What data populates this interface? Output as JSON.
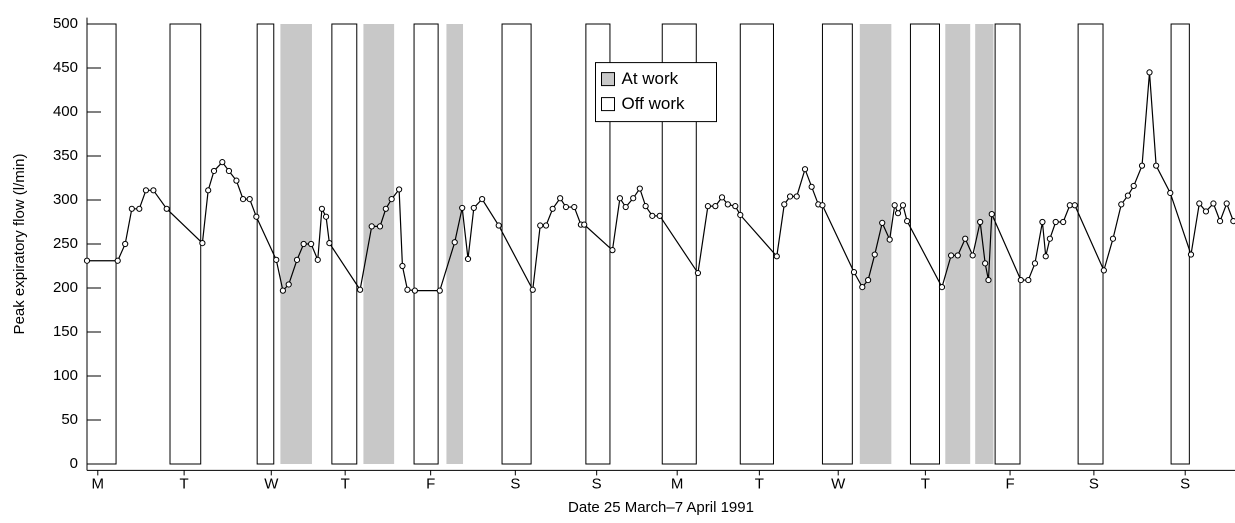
{
  "chart_data": {
    "type": "line",
    "ylabel": "Peak expiratory flow (l/min)",
    "xlabel": "Date 25 March–7 April 1991",
    "xlim": [
      0,
      13.83
    ],
    "ylim": [
      -5,
      505
    ],
    "yticks": [
      0,
      50,
      100,
      150,
      200,
      250,
      300,
      350,
      400,
      450,
      500
    ],
    "xticks": [
      {
        "value": 0.13,
        "label": "M"
      },
      {
        "value": 1.17,
        "label": "T"
      },
      {
        "value": 2.22,
        "label": "W"
      },
      {
        "value": 3.11,
        "label": "T"
      },
      {
        "value": 4.14,
        "label": "F"
      },
      {
        "value": 5.16,
        "label": "S"
      },
      {
        "value": 6.14,
        "label": "S"
      },
      {
        "value": 7.11,
        "label": "M"
      },
      {
        "value": 8.1,
        "label": "T"
      },
      {
        "value": 9.05,
        "label": "W"
      },
      {
        "value": 10.1,
        "label": "T"
      },
      {
        "value": 11.12,
        "label": "F"
      },
      {
        "value": 12.13,
        "label": "S"
      },
      {
        "value": 13.23,
        "label": "S"
      }
    ],
    "legend": "top-center",
    "color": "#000000",
    "shaded_periods": [
      {
        "name": "At work",
        "color": "#c8c8c8",
        "spans": [
          [
            2.33,
            2.71
          ],
          [
            3.33,
            3.7
          ],
          [
            4.33,
            4.53
          ],
          [
            9.31,
            9.69
          ],
          [
            10.34,
            10.64
          ],
          [
            10.7,
            10.92
          ]
        ]
      },
      {
        "name": "Off work",
        "color": "#ffffff",
        "spans": [
          [
            0,
            0.35
          ],
          [
            1.0,
            1.37
          ],
          [
            2.05,
            2.25
          ],
          [
            2.95,
            3.25
          ],
          [
            3.94,
            4.23
          ],
          [
            5.0,
            5.35
          ],
          [
            6.01,
            6.3
          ],
          [
            6.93,
            7.34
          ],
          [
            7.87,
            8.27
          ],
          [
            8.86,
            9.22
          ],
          [
            9.92,
            10.27
          ],
          [
            10.94,
            11.24
          ],
          [
            11.94,
            12.24
          ],
          [
            13.06,
            13.28
          ]
        ]
      }
    ],
    "x": [
      0,
      0.37,
      0.46,
      0.54,
      0.63,
      0.71,
      0.8,
      0.96,
      1.39,
      1.46,
      1.53,
      1.63,
      1.71,
      1.8,
      1.88,
      1.96,
      2.04,
      2.28,
      2.36,
      2.43,
      2.53,
      2.61,
      2.7,
      2.78,
      2.83,
      2.88,
      2.92,
      3.29,
      3.43,
      3.53,
      3.6,
      3.67,
      3.76,
      3.8,
      3.86,
      3.95,
      4.25,
      4.43,
      4.52,
      4.59,
      4.66,
      4.76,
      4.96,
      5.37,
      5.46,
      5.53,
      5.61,
      5.7,
      5.77,
      5.87,
      5.95,
      5.99,
      6.33,
      6.42,
      6.49,
      6.58,
      6.66,
      6.73,
      6.81,
      6.9,
      7.36,
      7.48,
      7.57,
      7.65,
      7.72,
      7.81,
      7.87,
      8.31,
      8.4,
      8.47,
      8.55,
      8.65,
      8.73,
      8.81,
      8.86,
      9.24,
      9.34,
      9.41,
      9.49,
      9.58,
      9.67,
      9.73,
      9.77,
      9.83,
      9.88,
      10.3,
      10.41,
      10.49,
      10.58,
      10.67,
      10.76,
      10.82,
      10.86,
      10.9,
      11.25,
      11.34,
      11.42,
      11.51,
      11.55,
      11.6,
      11.67,
      11.76,
      11.84,
      11.9,
      12.25,
      12.36,
      12.46,
      12.54,
      12.61,
      12.71,
      12.8,
      12.88,
      13.05,
      13.3,
      13.4,
      13.48,
      13.57,
      13.65,
      13.73,
      13.81
    ],
    "values": [
      231,
      231,
      250,
      290,
      290,
      311,
      311,
      290,
      251,
      311,
      333,
      343,
      333,
      322,
      301,
      301,
      281,
      232,
      197,
      204,
      232,
      250,
      250,
      232,
      290,
      281,
      251,
      198,
      270,
      270,
      290,
      301,
      312,
      225,
      198,
      197,
      197,
      252,
      291,
      233,
      291,
      301,
      271,
      198,
      271,
      271,
      290,
      302,
      292,
      292,
      272,
      272,
      243,
      302,
      292,
      302,
      313,
      293,
      282,
      282,
      217,
      293,
      293,
      303,
      295,
      293,
      283,
      236,
      295,
      304,
      304,
      335,
      315,
      295,
      294,
      218,
      201,
      209,
      238,
      274,
      255,
      294,
      285,
      294,
      276,
      201,
      237,
      237,
      256,
      237,
      275,
      228,
      209,
      284,
      209,
      209,
      228,
      275,
      236,
      256,
      275,
      275,
      294,
      294,
      220,
      256,
      295,
      305,
      316,
      339,
      445,
      339,
      308,
      238,
      296,
      287,
      296,
      276,
      296,
      276
    ]
  }
}
